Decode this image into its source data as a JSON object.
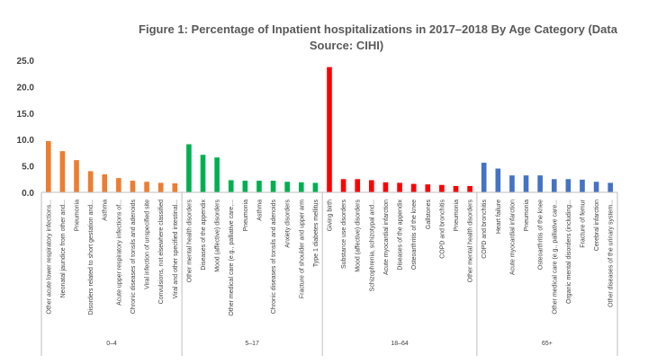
{
  "chart_data": {
    "type": "bar",
    "title": "Figure 1: Percentage of Inpatient hospitalizations in 2017–2018 By Age Category (Data Source: CIHI)",
    "title_lines": [
      "Figure 1: Percentage of Inpatient hospitalizations in 2017–2018 By Age Category (Data",
      "Source: CIHI)"
    ],
    "ylim": [
      0,
      25
    ],
    "yticks": [
      "0.0",
      "5.0",
      "10.0",
      "15.0",
      "20.0",
      "25.0"
    ],
    "grid": false,
    "groups": [
      {
        "name": "0–4",
        "color": "#ED7D31",
        "categories": [
          "Other acute lower respiratory infections...",
          "Neonatal jaundice from other and...",
          "Pneumonia",
          "Disorders related to short gestation and...",
          "Asthma",
          "Acute upper respiratory infections of...",
          "Chronic diseases of tonsils and adenoids",
          "Viral infection of unspecified site",
          "Convulsions, not elsewhere classified",
          "Viral and other specified intestinal..."
        ],
        "values": [
          9.7,
          7.8,
          6.1,
          4.0,
          3.4,
          2.7,
          2.2,
          2.0,
          1.8,
          1.7
        ]
      },
      {
        "name": "5–17",
        "color": "#00B050",
        "categories": [
          "Other mental health disorders",
          "Diseases of the appendix",
          "Mood (affective) disorders",
          "Other medical care (e.g., palliative care,...",
          "Pneumonia",
          "Asthma",
          "Chronic diseases of tonsils and adenoids",
          "Anxiety disorders",
          "Fracture of shoulder and upper arm",
          "Type 1 diabetes mellitus"
        ],
        "values": [
          9.1,
          7.1,
          6.6,
          2.3,
          2.2,
          2.2,
          2.2,
          2.0,
          1.9,
          1.8
        ]
      },
      {
        "name": "18–64",
        "color": "#FF0000",
        "categories": [
          "Giving birth",
          "Substance use disorders",
          "Mood (affective) disorders",
          "Schizophrenia, schizotypal and...",
          "Acute myocardial infarction",
          "Diseases of the appendix",
          "Osteoarthritis of the knee",
          "Gallstones",
          "COPD and bronchitis",
          "Pneumonia",
          "Other mental health disorders"
        ],
        "values": [
          23.7,
          2.5,
          2.5,
          2.3,
          1.9,
          1.8,
          1.6,
          1.5,
          1.4,
          1.2,
          1.2
        ]
      },
      {
        "name": "65+",
        "color": "#4472C4",
        "categories": [
          "COPD and bronchitis",
          "Heart failure",
          "Acute myocardial infarction",
          "Pneumonia",
          "Osteoarthritis of the knee",
          "Other medical care (e.g., palliative care...",
          "Organic mental disorders (including...",
          "Fracture of femur",
          "Cerebral infarction",
          "Other diseases of the urinary system..."
        ],
        "values": [
          5.6,
          4.5,
          3.2,
          3.2,
          3.2,
          2.5,
          2.5,
          2.4,
          2.0,
          1.8
        ]
      }
    ]
  }
}
